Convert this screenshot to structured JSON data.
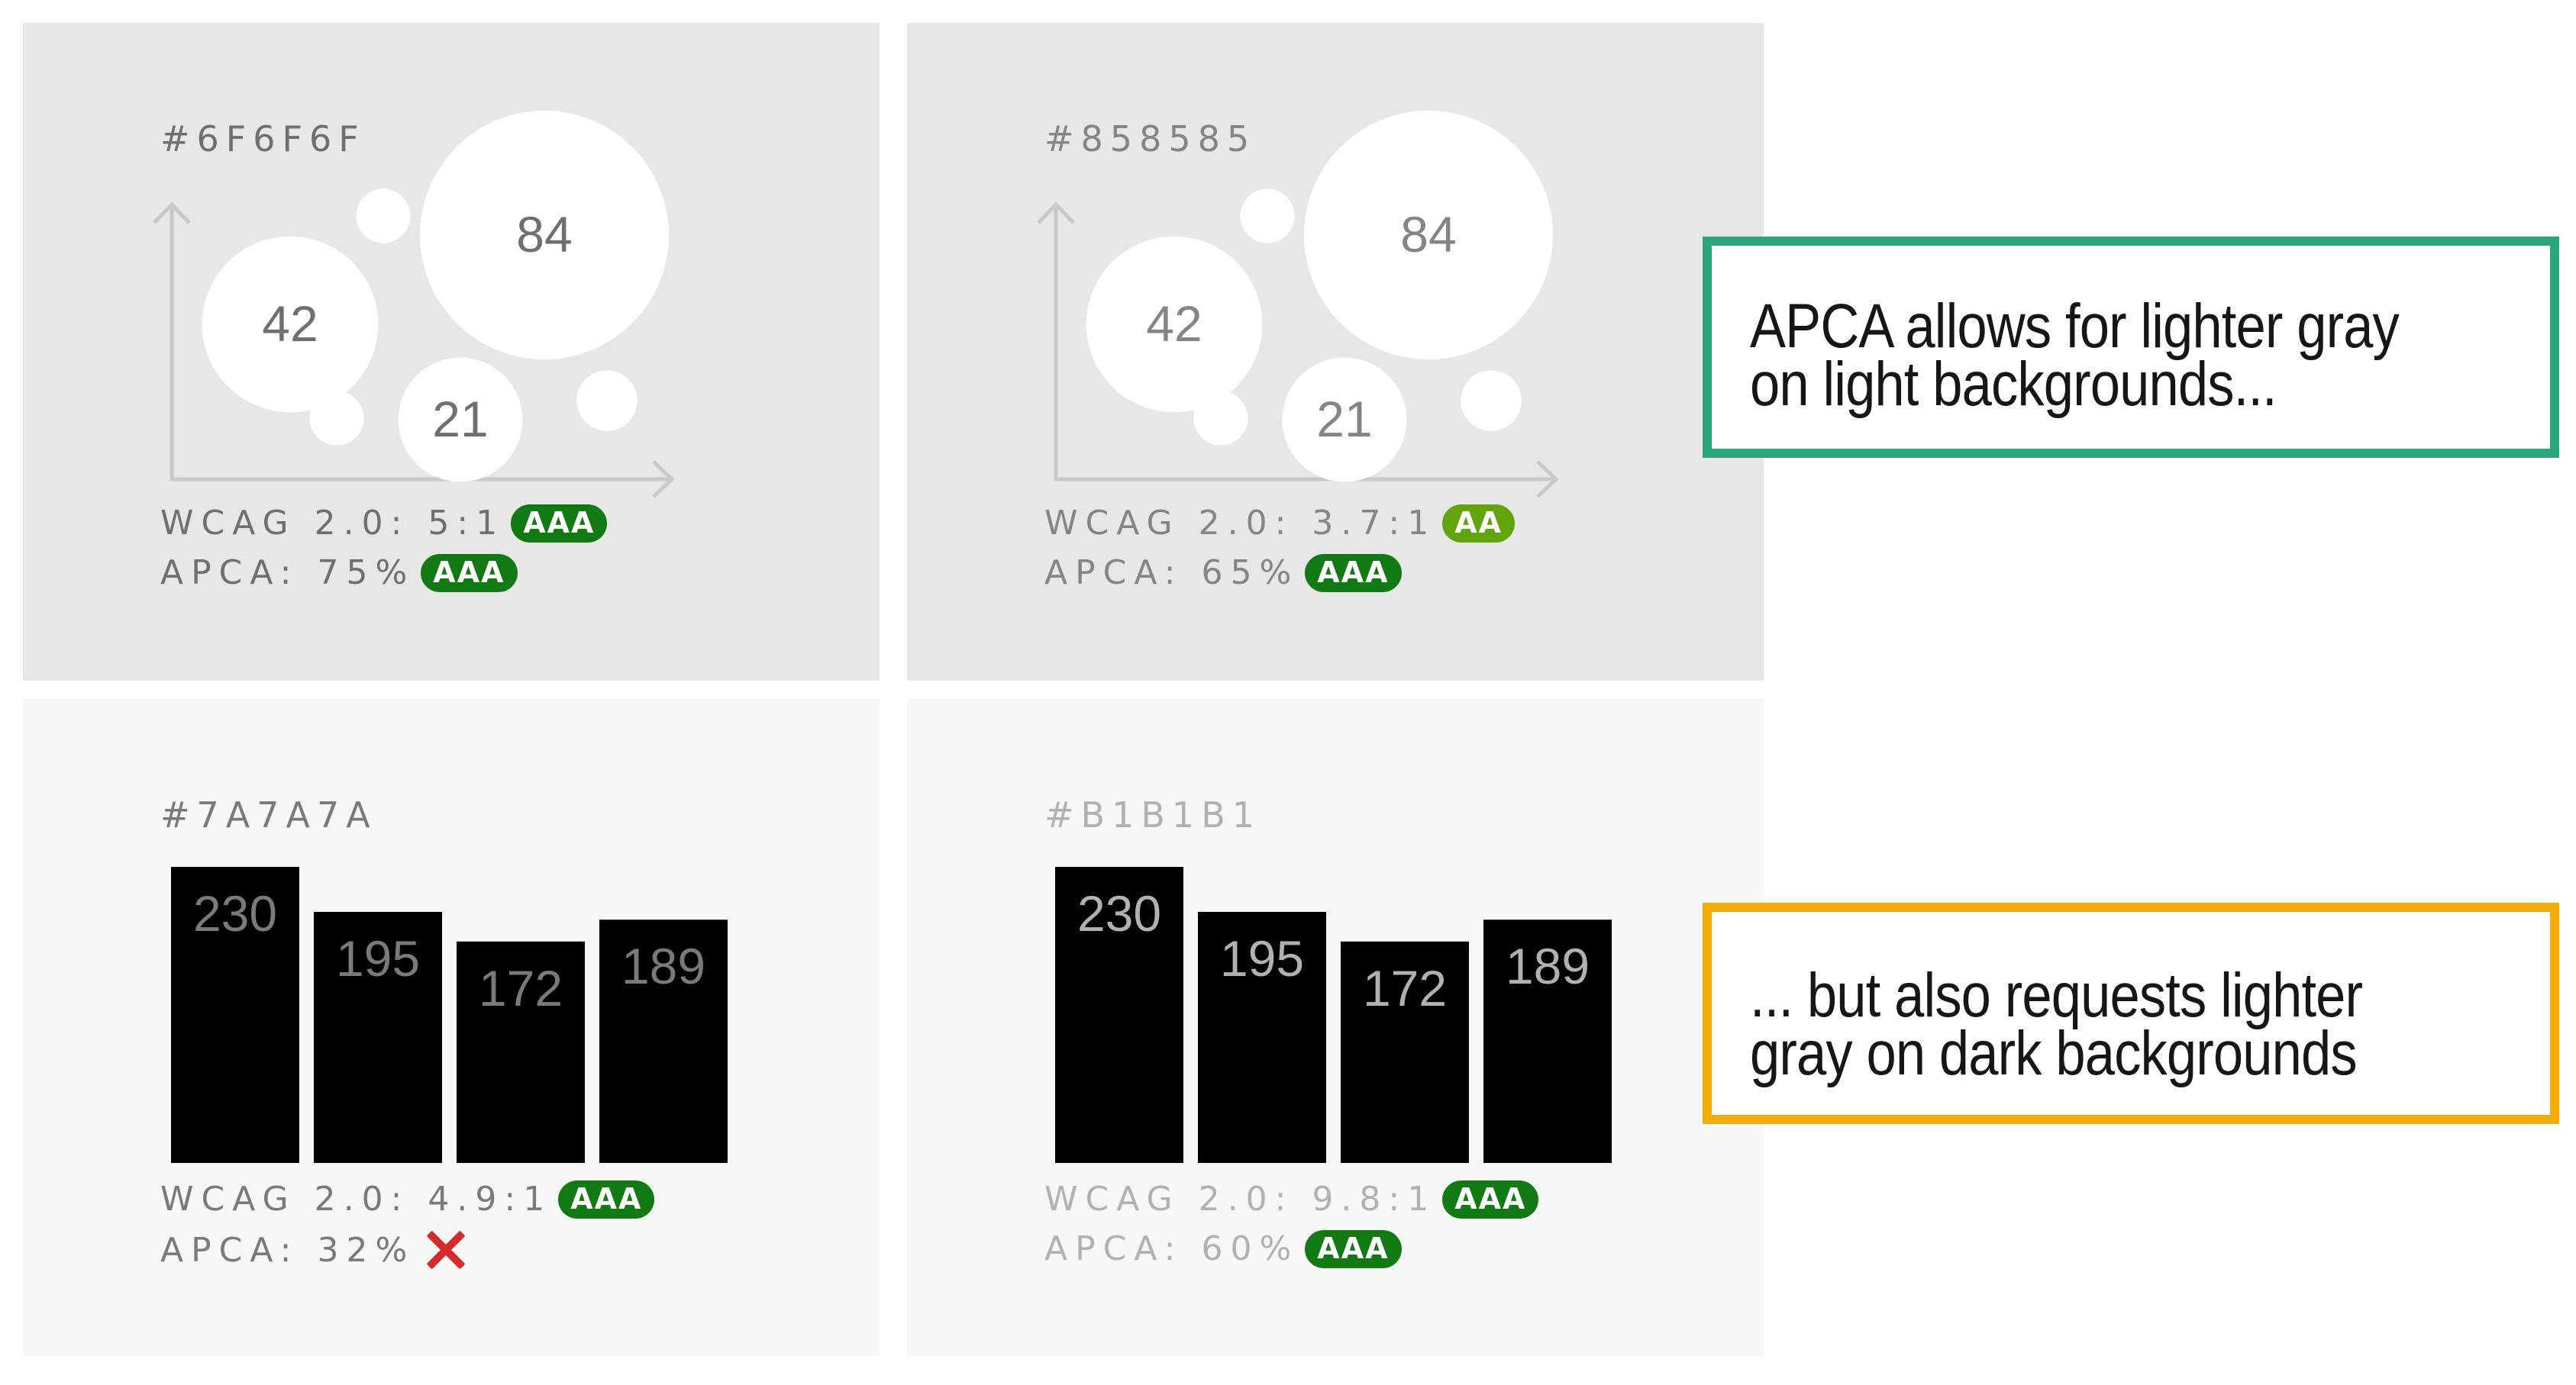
{
  "panels": [
    {
      "id": "bubble-light",
      "hex": "#6F6F6F",
      "text_color": "#6f6f6f",
      "background": "#e7e7e7",
      "wcag_label": "WCAG 2.0: 5:1",
      "wcag_badge": "AAA",
      "wcag_badge_color": "#127a12",
      "apca_label": "APCA: 75%",
      "apca_badge": "AAA",
      "apca_badge_color": "#127a12"
    },
    {
      "id": "bubble-lighter",
      "hex": "#858585",
      "text_color": "#858585",
      "background": "#e7e7e7",
      "wcag_label": "WCAG 2.0: 3.7:1",
      "wcag_badge": "AA",
      "wcag_badge_color": "#62a40c",
      "apca_label": "APCA: 65%",
      "apca_badge": "AAA",
      "apca_badge_color": "#127a12"
    },
    {
      "id": "bars-dark-text",
      "hex": "#7A7A7A",
      "text_color": "#7a7a7a",
      "background": "#f7f7f7",
      "wcag_label": "WCAG 2.0: 4.9:1",
      "wcag_badge": "AAA",
      "wcag_badge_color": "#127a12",
      "apca_label": "APCA: 32%",
      "apca_result": "fail-x-icon",
      "apca_fail_color": "#d42c2c"
    },
    {
      "id": "bars-light-text",
      "hex": "#B1B1B1",
      "text_color": "#b1b1b1",
      "background": "#f7f7f7",
      "wcag_label": "WCAG 2.0: 9.8:1",
      "wcag_badge": "AAA",
      "wcag_badge_color": "#127a12",
      "apca_label": "APCA: 60%",
      "apca_badge": "AAA",
      "apca_badge_color": "#127a12"
    }
  ],
  "chart_data": [
    {
      "type": "scatter",
      "variant": "bubble",
      "bubbles": [
        {
          "label": "42",
          "value": 42
        },
        {
          "label": "84",
          "value": 84
        },
        {
          "label": "21",
          "value": 21
        },
        {
          "label": "",
          "value": 4
        },
        {
          "label": "",
          "value": 5
        },
        {
          "label": "",
          "value": 4
        }
      ],
      "title": "",
      "xlabel": "",
      "ylabel": ""
    },
    {
      "type": "bar",
      "values": [
        230,
        195,
        172,
        189
      ],
      "bar_color": "#000000",
      "title": "",
      "xlabel": "",
      "ylabel": ""
    }
  ],
  "callouts": {
    "green": {
      "line1": "APCA allows for lighter gray",
      "line2": "on light backgrounds...",
      "border_color": "#2aa57e"
    },
    "yellow": {
      "line1": "... but also requests lighter",
      "line2": "gray on dark backgrounds",
      "border_color": "#f0ad0b"
    }
  }
}
